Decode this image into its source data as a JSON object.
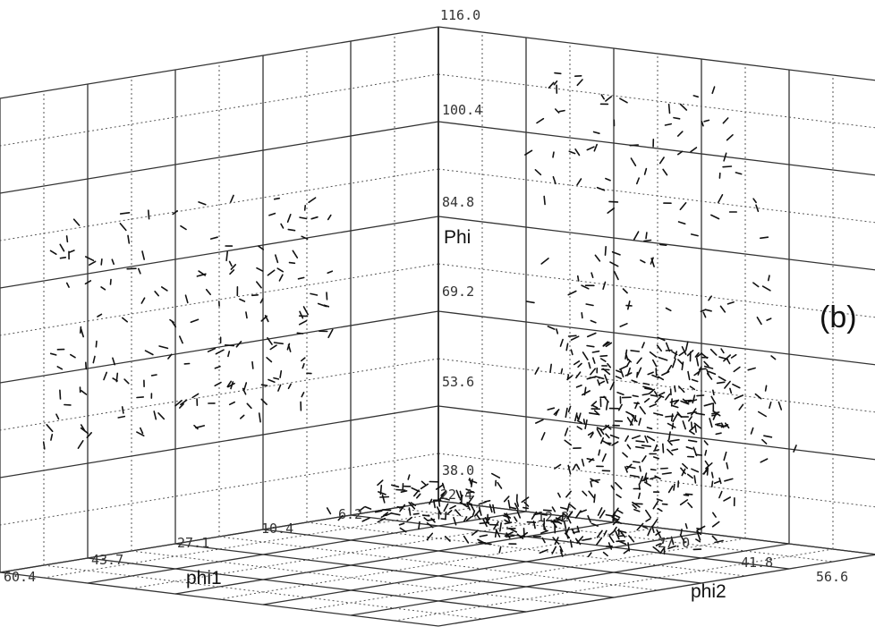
{
  "chart_data": {
    "type": "scatter",
    "subtype": "3d-orientation-field",
    "panel_label": "(b)",
    "axes": {
      "vertical": {
        "label": "Phi",
        "ticks": [
          "116.0",
          "100.4",
          "84.8",
          "69.2",
          "53.6",
          "38.0",
          "22.4"
        ],
        "range": [
          22.4,
          116.0
        ]
      },
      "left": {
        "label": "phi1",
        "ticks": [
          "6.2",
          "10.4",
          "27.1",
          "43.7",
          "60.4"
        ],
        "range": [
          6.2,
          60.4
        ]
      },
      "right": {
        "label": "phi2",
        "ticks": [
          "12.2",
          "27.0",
          "41.8",
          "56.6"
        ],
        "range": [
          12.2,
          56.6
        ]
      }
    },
    "grid": true,
    "clusters": [
      {
        "name": "",
        "phi1": [
          20,
          55
        ],
        "phi2": [
          12,
          14
        ],
        "Phi": [
          45,
          90
        ],
        "density": "medium"
      },
      {
        "name": "",
        "phi1": [
          8,
          12
        ],
        "phi2": [
          25,
          50
        ],
        "Phi": [
          40,
          112
        ],
        "density": "medium"
      },
      {
        "name": "",
        "phi1": [
          8,
          11
        ],
        "phi2": [
          28,
          44
        ],
        "Phi": [
          30,
          60
        ],
        "density": "high"
      },
      {
        "name": "",
        "phi1": [
          8,
          25
        ],
        "phi2": [
          15,
          45
        ],
        "Phi": [
          22,
          30
        ],
        "density": "high"
      }
    ]
  }
}
